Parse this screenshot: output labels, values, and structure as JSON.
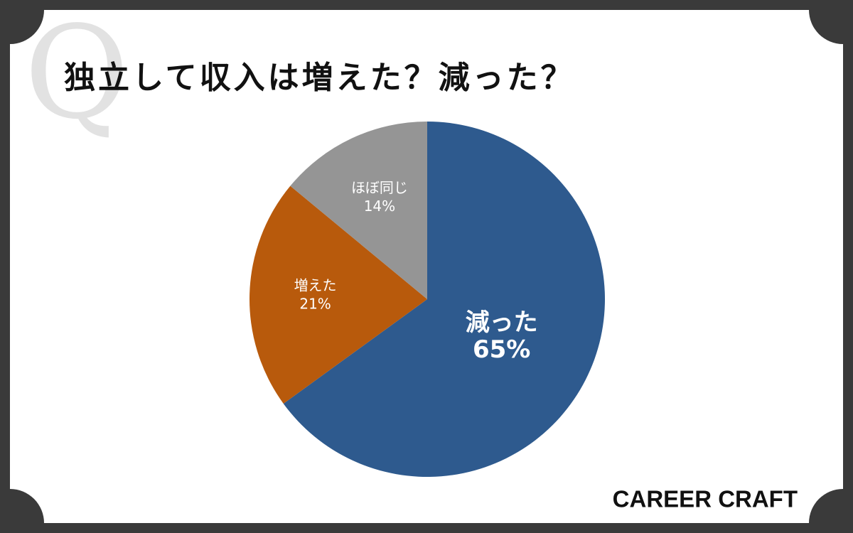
{
  "q_mark": "Q",
  "logo": "CAREER CRAFT",
  "chart_data": {
    "type": "pie",
    "title": "独立して収入は増えた？減った？",
    "categories": [
      "減った",
      "増えた",
      "ほぼ同じ"
    ],
    "values": [
      65,
      21,
      14
    ],
    "value_labels": [
      "65%",
      "21%",
      "14%"
    ],
    "colors": [
      "#2e5a8e",
      "#b85a0c",
      "#959595"
    ]
  }
}
